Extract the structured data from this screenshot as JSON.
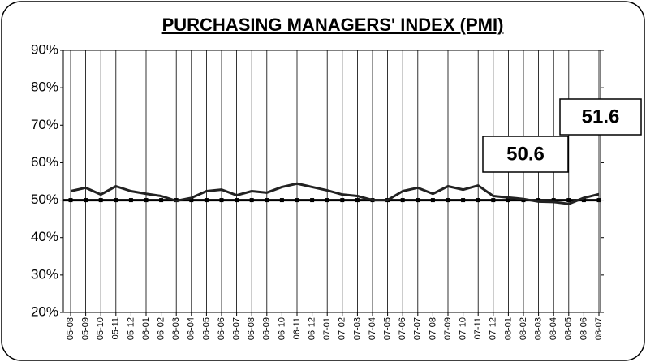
{
  "chart_data": {
    "type": "line",
    "title": "PURCHASING MANAGERS' INDEX (PMI)",
    "categories": [
      "05-08",
      "05-09",
      "05-10",
      "05-11",
      "05-12",
      "06-01",
      "06-02",
      "06-03",
      "06-04",
      "06-05",
      "06-06",
      "06-07",
      "06-08",
      "06-09",
      "06-10",
      "06-11",
      "06-12",
      "07-01",
      "07-02",
      "07-03",
      "07-04",
      "07-05",
      "07-06",
      "07-07",
      "07-08",
      "07-09",
      "07-10",
      "07-11",
      "07-12",
      "08-01",
      "08-02",
      "08-03",
      "08-04",
      "08-05",
      "08-06",
      "08-07"
    ],
    "series": [
      {
        "color": "#222222",
        "values": [
          52.4,
          53.3,
          51.5,
          53.7,
          52.4,
          51.7,
          51.1,
          49.8,
          50.6,
          52.4,
          52.8,
          51.3,
          52.4,
          52.0,
          53.5,
          54.4,
          53.5,
          52.6,
          51.5,
          51.1,
          50.0,
          50.0,
          52.4,
          53.3,
          51.7,
          53.7,
          52.8,
          53.9,
          51.1,
          50.7,
          50.3,
          49.6,
          49.5,
          49.0,
          50.6,
          51.6
        ],
        "value_labels": [
          null,
          null,
          null,
          null,
          null,
          null,
          null,
          null,
          null,
          null,
          null,
          null,
          null,
          null,
          null,
          null,
          null,
          null,
          null,
          null,
          null,
          null,
          null,
          null,
          null,
          null,
          null,
          null,
          null,
          null,
          null,
          null,
          null,
          null,
          "50.6",
          "51.6"
        ]
      }
    ],
    "reference": 50,
    "ylim": [
      20,
      90
    ],
    "yticks": [
      {
        "value": 20,
        "label": "20%"
      },
      {
        "value": 30,
        "label": "30%"
      },
      {
        "value": 40,
        "label": "40%"
      },
      {
        "value": 50,
        "label": "50%"
      },
      {
        "value": 60,
        "label": "60%"
      },
      {
        "value": 70,
        "label": "70%"
      },
      {
        "value": 80,
        "label": "80%"
      },
      {
        "value": 90,
        "label": "90%"
      }
    ],
    "grid": true
  }
}
